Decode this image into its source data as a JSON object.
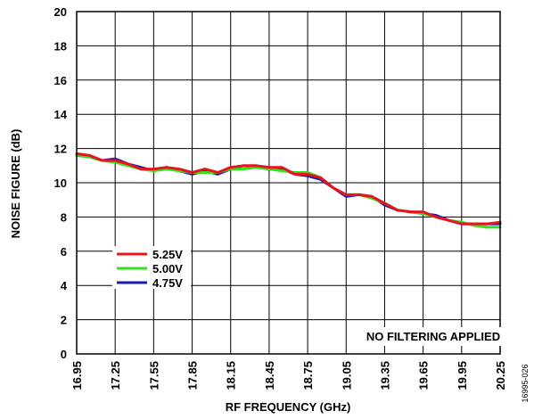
{
  "chart_data": {
    "type": "line",
    "xlabel": "RF FREQUENCY (GHz)",
    "ylabel": "NOISE FIGURE (dB)",
    "xlim": [
      16.95,
      20.25
    ],
    "ylim": [
      0,
      20
    ],
    "xticks": [
      "16.95",
      "17.25",
      "17.55",
      "17.85",
      "18.15",
      "18.45",
      "18.75",
      "19.05",
      "19.35",
      "19.65",
      "19.95",
      "20.25"
    ],
    "yticks": [
      "0",
      "2",
      "4",
      "6",
      "8",
      "10",
      "12",
      "14",
      "16",
      "18",
      "20"
    ],
    "grid": true,
    "legend_placement": "lower-left",
    "annotation": "NO FILTERING APPLIED",
    "figure_id": "16995-026",
    "x": [
      16.95,
      17.05,
      17.15,
      17.25,
      17.35,
      17.45,
      17.55,
      17.65,
      17.75,
      17.85,
      17.95,
      18.05,
      18.15,
      18.25,
      18.35,
      18.45,
      18.55,
      18.65,
      18.75,
      18.85,
      18.95,
      19.05,
      19.15,
      19.25,
      19.35,
      19.45,
      19.55,
      19.65,
      19.75,
      19.85,
      19.95,
      20.05,
      20.15,
      20.25
    ],
    "series": [
      {
        "name": "5.25V",
        "color": "#e8141c",
        "values": [
          11.7,
          11.6,
          11.3,
          11.3,
          11.1,
          10.8,
          10.8,
          10.9,
          10.8,
          10.6,
          10.8,
          10.6,
          10.9,
          11.0,
          11.0,
          10.9,
          10.9,
          10.5,
          10.5,
          10.3,
          9.7,
          9.3,
          9.3,
          9.2,
          8.8,
          8.4,
          8.3,
          8.3,
          8.0,
          7.8,
          7.6,
          7.6,
          7.6,
          7.7
        ]
      },
      {
        "name": "5.00V",
        "color": "#33e01f",
        "values": [
          11.6,
          11.5,
          11.3,
          11.2,
          11.0,
          10.8,
          10.7,
          10.8,
          10.7,
          10.6,
          10.6,
          10.6,
          10.8,
          10.8,
          10.9,
          10.8,
          10.7,
          10.6,
          10.6,
          10.3,
          9.7,
          9.3,
          9.3,
          9.1,
          8.8,
          8.4,
          8.3,
          8.2,
          8.0,
          7.8,
          7.7,
          7.5,
          7.4,
          7.4
        ]
      },
      {
        "name": "4.75V",
        "color": "#1a1ab8",
        "values": [
          11.6,
          11.5,
          11.3,
          11.4,
          11.1,
          10.9,
          10.7,
          10.9,
          10.7,
          10.5,
          10.7,
          10.5,
          10.8,
          11.0,
          10.9,
          10.8,
          10.8,
          10.5,
          10.4,
          10.2,
          9.7,
          9.2,
          9.3,
          9.2,
          8.7,
          8.4,
          8.3,
          8.2,
          8.1,
          7.8,
          7.6,
          7.6,
          7.6,
          7.6
        ]
      }
    ]
  }
}
